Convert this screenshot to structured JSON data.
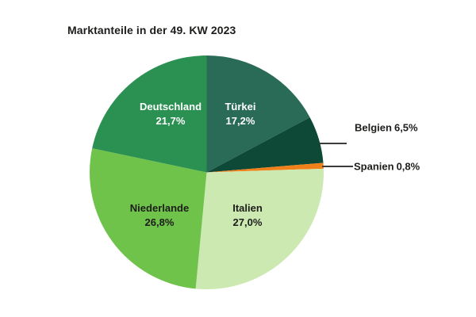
{
  "title": "Marktanteile in der 49. KW 2023",
  "chart_data": {
    "type": "pie",
    "title": "Marktanteile in der 49. KW 2023",
    "unit": "percent",
    "start_angle_deg": 0,
    "direction": "clockwise",
    "legend_position": "none",
    "slices": [
      {
        "id": "tuerkei",
        "label": "Türkei",
        "value": 17.2,
        "display_value": "17,2%",
        "color": "#2a6b57",
        "label_placement": "inside"
      },
      {
        "id": "belgien",
        "label": "Belgien",
        "value": 6.5,
        "display_value": "6,5%",
        "color": "#0d4936",
        "label_placement": "outside"
      },
      {
        "id": "spanien",
        "label": "Spanien",
        "value": 0.8,
        "display_value": "0,8%",
        "color": "#f08019",
        "label_placement": "outside"
      },
      {
        "id": "italien",
        "label": "Italien",
        "value": 27.0,
        "display_value": "27,0%",
        "color": "#cce9b2",
        "label_placement": "inside"
      },
      {
        "id": "niederlande",
        "label": "Niederlande",
        "value": 26.8,
        "display_value": "26,8%",
        "color": "#6fc24a",
        "label_placement": "inside"
      },
      {
        "id": "deutschland",
        "label": "Deutschland",
        "value": 21.7,
        "display_value": "21,7%",
        "color": "#2b9152",
        "label_placement": "inside"
      }
    ]
  }
}
